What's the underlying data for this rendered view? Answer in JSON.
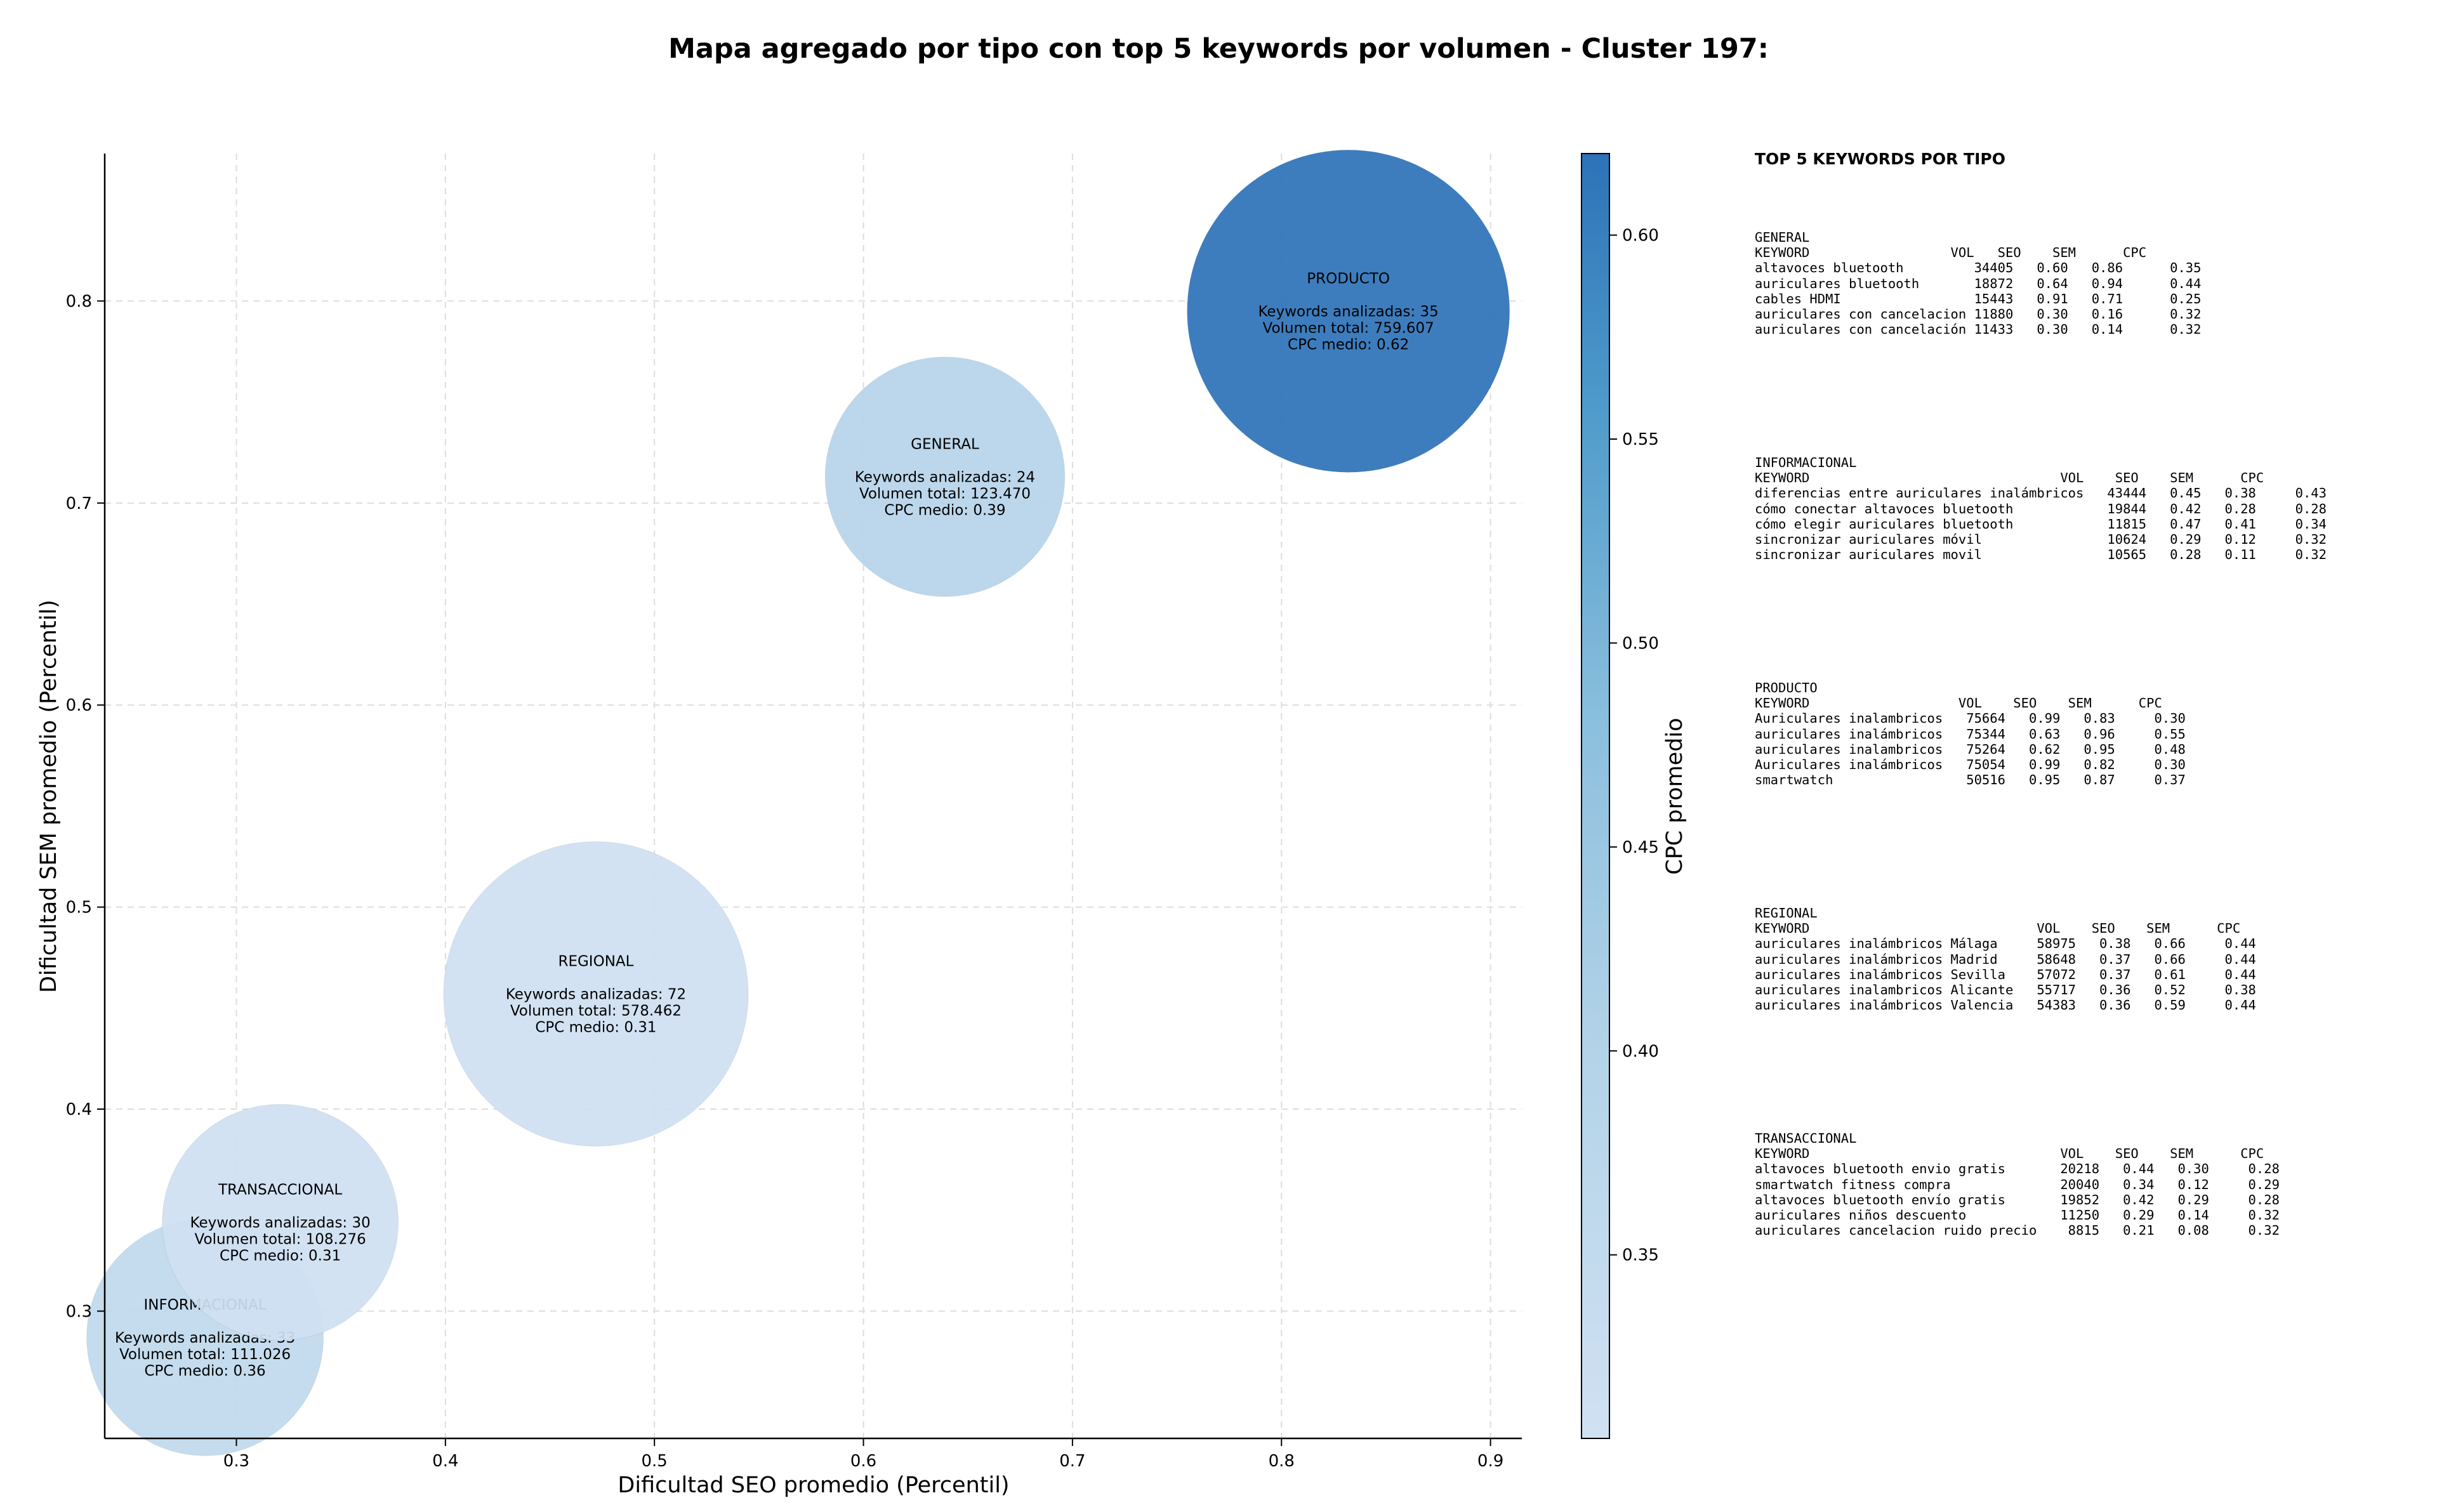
{
  "chart_data": {
    "type": "scatter",
    "title": "Mapa agregado por tipo con top 5 keywords por volumen - Cluster 197:",
    "xlabel": "Dificultad SEO promedio (Percentil)",
    "ylabel": "Dificultad SEM promedio (Percentil)",
    "xlim": [
      0.237,
      0.915
    ],
    "ylim": [
      0.237,
      0.873
    ],
    "xticks": [
      0.3,
      0.4,
      0.5,
      0.6,
      0.7,
      0.8,
      0.9
    ],
    "yticks": [
      0.3,
      0.4,
      0.5,
      0.6,
      0.7,
      0.8
    ],
    "grid": true,
    "colorbar": {
      "label": "CPC promedio",
      "range": [
        0.305,
        0.62
      ],
      "ticks": [
        0.35,
        0.4,
        0.45,
        0.5,
        0.55,
        0.6
      ],
      "color_low": "#d0e1f2",
      "color_high": "#2c72b8"
    },
    "points": [
      {
        "label": "INFORMACIONAL",
        "x": 0.285,
        "y": 0.287,
        "cpc": 0.36,
        "keywords": 33,
        "volume": 111026,
        "lines": [
          "INFORMACIONAL",
          "",
          "Keywords analizadas: 33",
          "Volumen total: 111.026",
          "CPC medio: 0.36"
        ]
      },
      {
        "label": "TRANSACCIONAL",
        "x": 0.321,
        "y": 0.344,
        "cpc": 0.31,
        "keywords": 30,
        "volume": 108276,
        "lines": [
          "TRANSACCIONAL",
          "",
          "Keywords analizadas: 30",
          "Volumen total: 108.276",
          "CPC medio: 0.31"
        ]
      },
      {
        "label": "REGIONAL",
        "x": 0.472,
        "y": 0.457,
        "cpc": 0.31,
        "keywords": 72,
        "volume": 578462,
        "lines": [
          "REGIONAL",
          "",
          "Keywords analizadas: 72",
          "Volumen total: 578.462",
          "CPC medio: 0.31"
        ]
      },
      {
        "label": "GENERAL",
        "x": 0.639,
        "y": 0.713,
        "cpc": 0.39,
        "keywords": 24,
        "volume": 123470,
        "lines": [
          "GENERAL",
          "",
          "Keywords analizadas: 24",
          "Volumen total: 123.470",
          "CPC medio: 0.39"
        ]
      },
      {
        "label": "PRODUCTO",
        "x": 0.832,
        "y": 0.795,
        "cpc": 0.62,
        "keywords": 35,
        "volume": 759607,
        "lines": [
          "PRODUCTO",
          "",
          "Keywords analizadas: 35",
          "Volumen total: 759.607",
          "CPC medio: 0.62"
        ]
      }
    ]
  },
  "side_panel": {
    "title": "TOP 5 KEYWORDS POR TIPO",
    "groups": [
      {
        "name": "GENERAL",
        "header": "KEYWORD                  VOL   SEO    SEM      CPC",
        "rows": [
          "altavoces bluetooth         34405   0.60   0.86      0.35",
          "auriculares bluetooth       18872   0.64   0.94      0.44",
          "cables HDMI                 15443   0.91   0.71      0.25",
          "auriculares con cancelacion 11880   0.30   0.16      0.32",
          "auriculares con cancelación 11433   0.30   0.14      0.32"
        ]
      },
      {
        "name": "INFORMACIONAL",
        "header": "KEYWORD                                VOL    SEO    SEM      CPC",
        "rows": [
          "diferencias entre auriculares inalámbricos   43444   0.45   0.38     0.43",
          "cómo conectar altavoces bluetooth            19844   0.42   0.28     0.28",
          "cómo elegir auriculares bluetooth            11815   0.47   0.41     0.34",
          "sincronizar auriculares móvil                10624   0.29   0.12     0.32",
          "sincronizar auriculares movil                10565   0.28   0.11     0.32"
        ]
      },
      {
        "name": "PRODUCTO",
        "header": "KEYWORD                   VOL    SEO    SEM      CPC",
        "rows": [
          "Auriculares inalambricos   75664   0.99   0.83     0.30",
          "auriculares inalámbricos   75344   0.63   0.96     0.55",
          "auriculares inalambricos   75264   0.62   0.95     0.48",
          "Auriculares inalámbricos   75054   0.99   0.82     0.30",
          "smartwatch                 50516   0.95   0.87     0.37"
        ]
      },
      {
        "name": "REGIONAL",
        "header": "KEYWORD                             VOL    SEO    SEM      CPC",
        "rows": [
          "auriculares inalámbricos Málaga     58975   0.38   0.66     0.44",
          "auriculares inalámbricos Madrid     58648   0.37   0.66     0.44",
          "auriculares inalámbricos Sevilla    57072   0.37   0.61     0.44",
          "auriculares inalambricos Alicante   55717   0.36   0.52     0.38",
          "auriculares inalámbricos Valencia   54383   0.36   0.59     0.44"
        ]
      },
      {
        "name": "TRANSACCIONAL",
        "header": "KEYWORD                                VOL    SEO    SEM      CPC",
        "rows": [
          "altavoces bluetooth envio gratis       20218   0.44   0.30     0.28",
          "smartwatch fitness compra              20040   0.34   0.12     0.29",
          "altavoces bluetooth envío gratis       19852   0.42   0.29     0.28",
          "auriculares niños descuento            11250   0.29   0.14     0.32",
          "auriculares cancelacion ruido precio    8815   0.21   0.08     0.32"
        ]
      }
    ]
  }
}
